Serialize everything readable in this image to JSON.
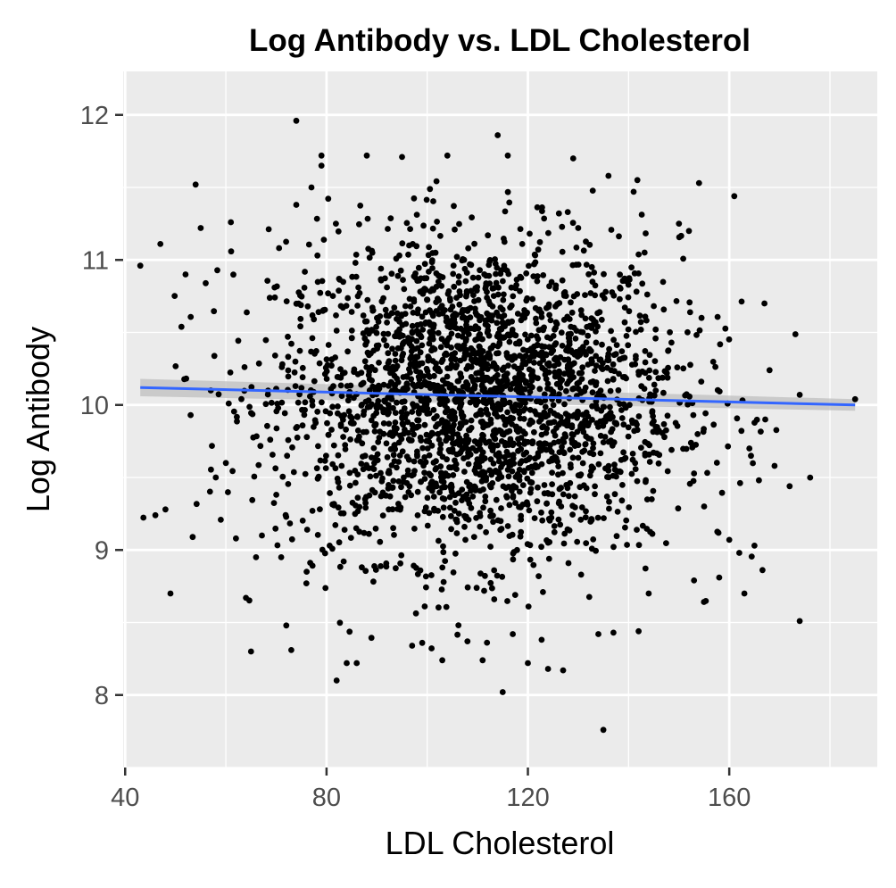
{
  "chart_data": {
    "type": "scatter",
    "title": "Log Antibody vs. LDL Cholesterol",
    "xlabel": "LDL Cholesterol",
    "ylabel": "Log Antibody",
    "xlim": [
      39.6,
      189.4
    ],
    "ylim": [
      7.5,
      12.3
    ],
    "x_ticks": [
      40,
      80,
      120,
      160
    ],
    "x_tick_labels": [
      "40",
      "80",
      "120",
      "160"
    ],
    "y_ticks": [
      8,
      9,
      10,
      11,
      12
    ],
    "y_tick_labels": [
      "8",
      "9",
      "10",
      "11",
      "12"
    ],
    "grid": true,
    "panel_background": "#ebebeb",
    "grid_color": "#ffffff",
    "point_color": "#000000",
    "trend_line": {
      "type": "linear",
      "color": "#3366ff",
      "ci_band_color": "#bfbfbf",
      "x": [
        43,
        185
      ],
      "y": [
        10.12,
        10.0
      ],
      "ci_halfwidth": [
        0.06,
        0.04
      ]
    },
    "series": [
      {
        "cluster_center": [
          110,
          10.05
        ],
        "cluster_sd": [
          20,
          0.55
        ],
        "cluster_count": 2600,
        "x_range": [
          43,
          185
        ],
        "x": [
          43,
          46,
          47,
          48,
          49,
          52,
          53,
          54,
          55,
          56,
          57,
          58,
          60,
          61,
          62,
          64,
          65,
          66,
          71,
          72,
          73,
          74,
          74,
          76,
          77,
          79,
          79,
          82,
          83,
          84,
          86,
          87,
          88,
          95,
          97,
          99,
          103,
          104,
          108,
          111,
          114,
          115,
          116,
          117,
          120,
          123,
          124,
          127,
          129,
          130,
          134,
          135,
          136,
          137,
          141,
          142,
          144,
          150,
          152,
          153,
          154,
          155,
          158,
          160,
          161,
          162,
          163,
          164,
          165,
          167,
          168,
          169,
          172,
          174,
          174,
          185
        ],
        "y": [
          10.96,
          9.24,
          11.11,
          9.28,
          8.7,
          10.9,
          9.93,
          11.52,
          11.22,
          10.84,
          10.1,
          9.5,
          9.6,
          11.26,
          9.08,
          8.67,
          8.3,
          8.95,
          8.95,
          8.48,
          8.31,
          11.96,
          11.38,
          8.77,
          11.5,
          11.72,
          11.65,
          8.1,
          9.58,
          8.22,
          8.22,
          8.88,
          11.72,
          11.71,
          8.34,
          8.36,
          8.24,
          11.72,
          8.37,
          8.24,
          11.86,
          8.02,
          11.72,
          8.42,
          8.22,
          8.71,
          8.18,
          8.17,
          11.7,
          11.22,
          8.42,
          7.76,
          11.58,
          8.43,
          11.47,
          8.44,
          8.7,
          11.25,
          11.2,
          8.79,
          11.53,
          9.3,
          8.81,
          9.07,
          11.44,
          8.98,
          8.7,
          9.7,
          9.03,
          10.7,
          10.24,
          9.58,
          9.44,
          10.07,
          8.51,
          10.04
        ]
      }
    ]
  }
}
